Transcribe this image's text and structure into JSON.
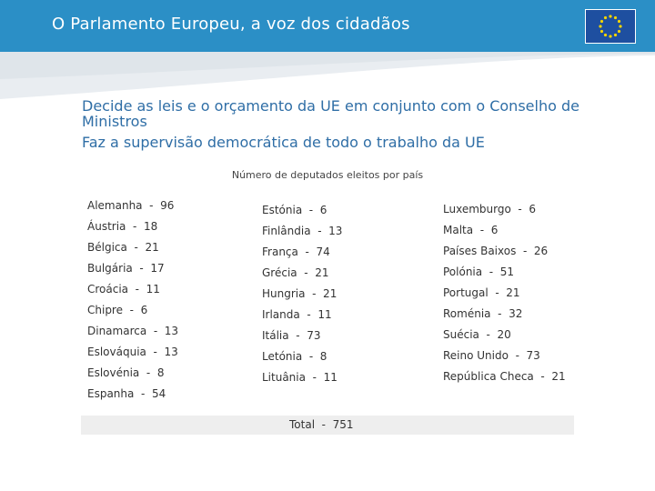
{
  "header": {
    "title": "O Parlamento Europeu, a voz dos cidadãos",
    "flag_icon": "eu-flag-icon",
    "colors": {
      "band": "#2b8fc6",
      "flag": "#1e4fa0",
      "stars": "#f5d400"
    }
  },
  "bullets": [
    "Decide as leis e o orçamento da UE em conjunto com o Conselho de Ministros",
    "Faz a supervisão democrática de todo o trabalho da UE"
  ],
  "caption": "Número de deputados eleitos por país",
  "columns": [
    [
      "Alemanha  -  96",
      "Áustria  -  18",
      "Bélgica  -  21",
      "Bulgária  -  17",
      "Croácia  -  11",
      "Chipre  -  6",
      "Dinamarca  -  13",
      "Eslováquia  -  13",
      "Eslovénia  -  8",
      "Espanha  -  54"
    ],
    [
      "Estónia  -  6",
      "Finlândia  -  13",
      "França  -  74",
      "Grécia  -  21",
      "Hungria  -  21",
      "Irlanda  -  11",
      "Itália  -  73",
      "Letónia  -  8",
      "Lituânia  -  11"
    ],
    [
      "Luxemburgo  -  6",
      "Malta  -  6",
      "Países Baixos  -  26",
      "Polónia  -  51",
      "Portugal  -  21",
      "Roménia  -  32",
      "Suécia  -  20",
      "Reino Unido  -  73",
      "República Checa  -  21"
    ]
  ],
  "total": "Total  -  751"
}
